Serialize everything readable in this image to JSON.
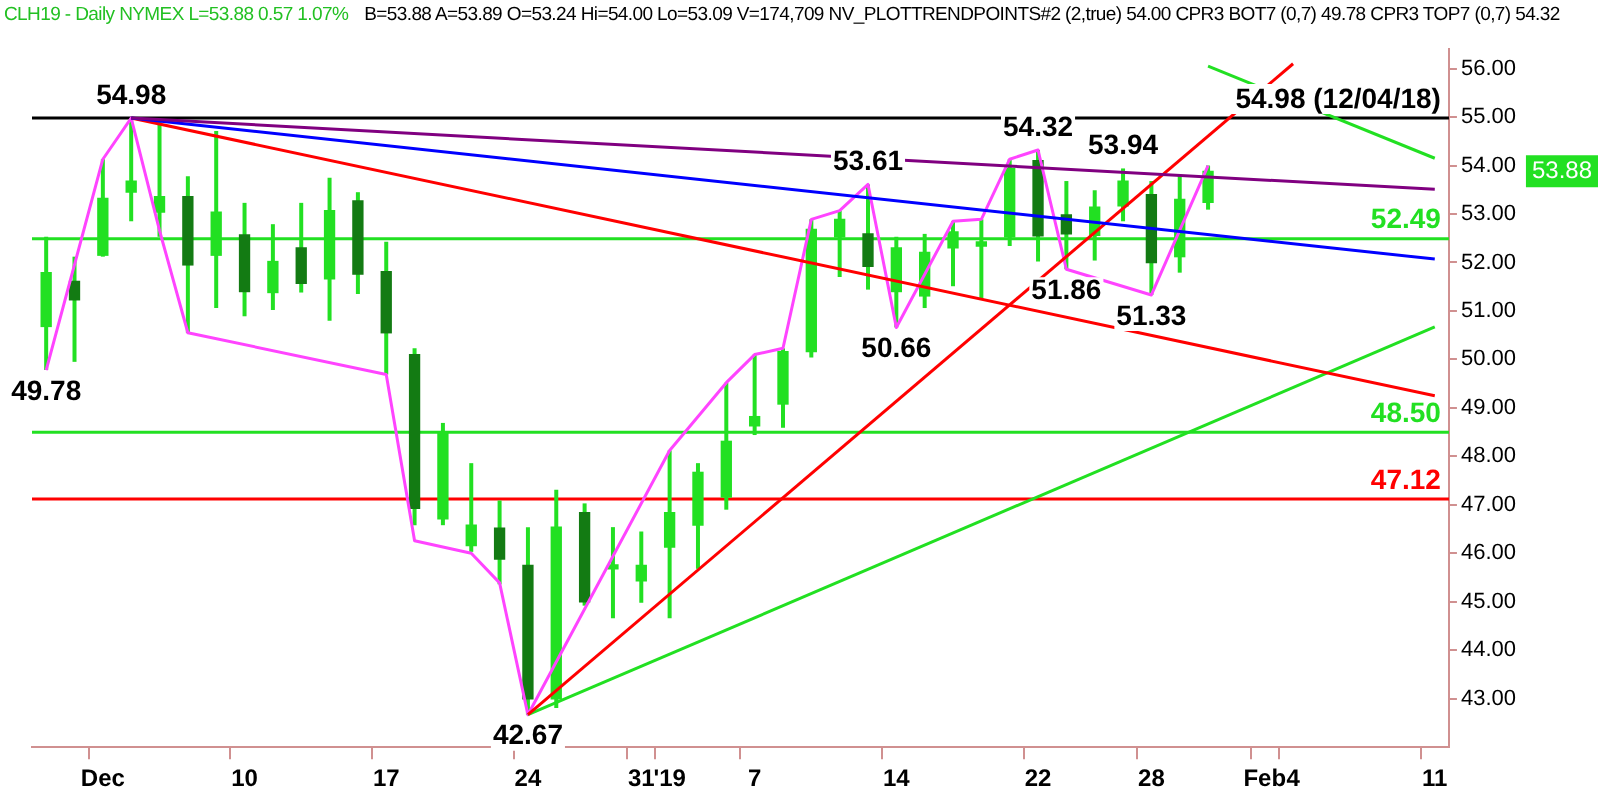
{
  "chart_data": {
    "type": "candlestick",
    "title": "CLH19 - Daily  NYMEX  L=53.88  0.57  1.07%",
    "subtitle": "B=53.88  A=53.89  O=53.24  Hi=54.00  Lo=53.09  V=174,709  NV_PLOTTRENDPOINTS#2 (2,true)  54.00  CPR3 BOT7 (0,7)  49.78  CPR3 TOP7 (0,7)  54.32",
    "categories": [
      null,
      null,
      "Dec",
      null,
      null,
      null,
      null,
      "10",
      null,
      null,
      null,
      null,
      "17",
      null,
      null,
      null,
      null,
      "24",
      null,
      null,
      null,
      "31",
      "'19",
      null,
      null,
      "7",
      null,
      null,
      null,
      null,
      "14",
      null,
      null,
      null,
      null,
      "22",
      null,
      null,
      null,
      "28",
      null,
      null,
      null,
      "Feb",
      "4",
      null,
      null,
      null,
      null,
      "11"
    ],
    "color": "#22e022",
    "colors": [
      "#22e022",
      "#137b13",
      "#22e022",
      "#22e022",
      "#22e022",
      "#137b13",
      "#22e022",
      "#137b13",
      "#22e022",
      "#137b13",
      "#22e022",
      "#137b13",
      "#137b13",
      "#137b13",
      "#22e022",
      "#22e022",
      "#137b13",
      "#137b13",
      "#22e022",
      "#137b13",
      "#22e022",
      "#22e022",
      "#22e022",
      "#22e022",
      "#22e022",
      "#22e022",
      "#22e022",
      "#22e022",
      "#22e022",
      "#137b13",
      "#22e022",
      "#22e022",
      "#22e022",
      "#22e022",
      "#22e022",
      "#137b13",
      "#137b13",
      "#22e022",
      "#22e022",
      "#137b13",
      "#22e022",
      "#22e022",
      null,
      null,
      null,
      null,
      null,
      null,
      null,
      null
    ],
    "ohlc": [
      [
        50.68,
        52.53,
        49.78,
        51.79
      ],
      [
        51.61,
        52.12,
        49.95,
        51.23
      ],
      [
        52.15,
        54.13,
        52.12,
        53.32
      ],
      [
        53.45,
        54.98,
        52.85,
        53.68
      ],
      [
        53.04,
        54.9,
        52.53,
        53.36
      ],
      [
        53.36,
        53.78,
        50.55,
        51.95
      ],
      [
        52.15,
        54.71,
        51.06,
        53.04
      ],
      [
        52.57,
        53.23,
        50.89,
        51.4
      ],
      [
        51.38,
        52.79,
        51.02,
        52.02
      ],
      [
        52.3,
        53.23,
        51.38,
        51.57
      ],
      [
        51.66,
        53.75,
        50.8,
        53.07
      ],
      [
        53.27,
        53.45,
        51.35,
        51.76
      ],
      [
        51.81,
        52.43,
        49.69,
        50.55
      ],
      [
        50.1,
        50.23,
        46.58,
        46.93
      ],
      [
        46.71,
        48.69,
        46.58,
        48.5
      ],
      [
        46.16,
        47.86,
        46.03,
        46.58
      ],
      [
        46.52,
        47.09,
        45.36,
        45.88
      ],
      [
        45.75,
        46.54,
        42.67,
        43.0
      ],
      [
        43.0,
        47.31,
        42.81,
        46.54
      ],
      [
        46.84,
        47.03,
        44.92,
        45.0
      ],
      [
        45.68,
        46.54,
        44.66,
        45.75
      ],
      [
        45.43,
        46.45,
        44.98,
        45.75
      ],
      [
        46.13,
        48.12,
        44.66,
        46.84
      ],
      [
        46.58,
        47.86,
        45.68,
        47.67
      ],
      [
        47.16,
        49.52,
        46.9,
        48.31
      ],
      [
        48.63,
        50.1,
        48.44,
        48.82
      ],
      [
        49.08,
        50.23,
        48.59,
        50.16
      ],
      [
        50.16,
        52.89,
        50.04,
        52.68
      ],
      [
        52.53,
        53.07,
        51.7,
        52.89
      ],
      [
        52.59,
        53.61,
        51.44,
        51.92
      ],
      [
        51.4,
        52.53,
        50.66,
        52.3
      ],
      [
        51.31,
        52.59,
        51.06,
        52.21
      ],
      [
        52.3,
        52.85,
        51.51,
        52.63
      ],
      [
        52.34,
        52.89,
        51.25,
        52.4
      ],
      [
        52.53,
        54.13,
        52.34,
        53.94
      ],
      [
        54.1,
        54.32,
        52.02,
        52.55
      ],
      [
        52.98,
        53.68,
        51.86,
        52.59
      ],
      [
        52.56,
        53.49,
        52.04,
        53.14
      ],
      [
        53.17,
        53.94,
        52.85,
        53.68
      ],
      [
        53.4,
        53.68,
        51.33,
        52.0
      ],
      [
        52.12,
        53.81,
        51.79,
        53.3
      ],
      [
        53.24,
        54.0,
        53.09,
        53.88
      ],
      null,
      null,
      null,
      null,
      null,
      null,
      null,
      null
    ],
    "series": [
      {
        "type": "line",
        "color": "#800080",
        "values": [
          null,
          null,
          null,
          54.98,
          null,
          null,
          null,
          null,
          null,
          null,
          null,
          null,
          null,
          null,
          null,
          null,
          null,
          null,
          null,
          null,
          null,
          null,
          null,
          null,
          null,
          null,
          null,
          null,
          null,
          null,
          null,
          null,
          null,
          null,
          null,
          null,
          null,
          null,
          null,
          null,
          null,
          null,
          null,
          null,
          null,
          null,
          null,
          null,
          null,
          53.51
        ]
      },
      {
        "type": "line",
        "color": "#0000ff",
        "values": [
          null,
          null,
          null,
          54.98,
          null,
          null,
          null,
          null,
          null,
          null,
          null,
          null,
          null,
          null,
          null,
          null,
          null,
          null,
          null,
          null,
          null,
          null,
          null,
          null,
          null,
          null,
          null,
          null,
          null,
          null,
          null,
          null,
          null,
          null,
          null,
          null,
          null,
          null,
          null,
          null,
          null,
          null,
          null,
          null,
          null,
          null,
          null,
          null,
          null,
          52.07
        ]
      },
      {
        "type": "line",
        "color": "#ff0000",
        "values": [
          null,
          null,
          null,
          54.98,
          null,
          null,
          null,
          null,
          null,
          null,
          null,
          null,
          null,
          null,
          null,
          null,
          null,
          null,
          null,
          null,
          null,
          null,
          null,
          null,
          null,
          null,
          null,
          null,
          null,
          null,
          null,
          null,
          null,
          null,
          null,
          null,
          null,
          null,
          null,
          null,
          null,
          null,
          null,
          null,
          null,
          null,
          null,
          null,
          null,
          49.25
        ]
      },
      {
        "type": "line",
        "color": "#ff0000",
        "values": [
          null,
          null,
          null,
          null,
          null,
          null,
          null,
          null,
          null,
          null,
          null,
          null,
          null,
          null,
          null,
          null,
          null,
          42.67,
          null,
          null,
          null,
          null,
          null,
          null,
          null,
          null,
          null,
          null,
          null,
          null,
          null,
          null,
          null,
          null,
          null,
          null,
          null,
          null,
          null,
          null,
          null,
          null,
          null,
          null,
          56.1,
          null,
          null,
          null,
          null,
          null
        ]
      },
      {
        "type": "line",
        "color": "#22e022",
        "values": [
          null,
          null,
          null,
          null,
          null,
          null,
          null,
          null,
          null,
          null,
          null,
          null,
          null,
          null,
          null,
          null,
          null,
          42.67,
          null,
          null,
          null,
          null,
          null,
          null,
          null,
          null,
          null,
          null,
          null,
          null,
          null,
          null,
          null,
          null,
          null,
          null,
          null,
          null,
          null,
          null,
          null,
          null,
          null,
          null,
          null,
          null,
          null,
          null,
          null,
          50.67
        ]
      },
      {
        "type": "line",
        "color": "#22e022",
        "values": [
          null,
          null,
          null,
          null,
          null,
          null,
          null,
          null,
          null,
          null,
          null,
          null,
          null,
          null,
          null,
          null,
          null,
          null,
          null,
          null,
          null,
          null,
          null,
          null,
          null,
          null,
          null,
          null,
          null,
          null,
          null,
          null,
          null,
          null,
          null,
          null,
          null,
          null,
          null,
          null,
          null,
          56.05,
          null,
          null,
          null,
          null,
          null,
          null,
          null,
          54.15
        ]
      },
      {
        "type": "line",
        "color": "#ff44ff",
        "values": [
          49.78,
          null,
          54.13,
          54.98,
          52.66,
          50.55,
          null,
          null,
          null,
          null,
          null,
          null,
          49.69,
          46.26,
          null,
          46.0,
          45.39,
          42.67,
          null,
          null,
          null,
          null,
          48.12,
          null,
          49.52,
          50.1,
          50.23,
          52.89,
          53.07,
          53.61,
          50.66,
          null,
          52.85,
          52.89,
          54.13,
          54.32,
          51.86,
          null,
          null,
          51.33,
          null,
          54.0,
          null,
          null,
          null,
          null,
          null,
          null,
          null,
          null
        ]
      }
    ],
    "ref_lines": [
      {
        "axis": "y",
        "value": 54.98,
        "label": "54.98 (12/04/18)",
        "color": "#000000"
      },
      {
        "axis": "y",
        "value": 52.49,
        "label": "52.49",
        "color": "#22e022"
      },
      {
        "axis": "y",
        "value": 48.5,
        "label": "48.50",
        "color": "#22e022"
      },
      {
        "axis": "y",
        "value": 47.12,
        "label": "47.12",
        "color": "#ff0000"
      }
    ],
    "annotations": [
      {
        "text": "49.78",
        "y": 49.78
      },
      {
        "text": "54.98",
        "y": 54.98
      },
      {
        "text": "42.67",
        "y": 42.67
      },
      {
        "text": "53.61",
        "y": 53.61
      },
      {
        "text": "50.66",
        "y": 50.66
      },
      {
        "text": "54.32",
        "y": 54.32
      },
      {
        "text": "51.86",
        "y": 51.86
      },
      {
        "text": "53.94",
        "y": 53.94
      },
      {
        "text": "51.33",
        "y": 51.33
      },
      "53.88"
    ],
    "ylim": [
      42,
      56.4
    ],
    "yticks": [
      {
        "value": 43,
        "label": "43.00"
      },
      {
        "value": 44,
        "label": "44.00"
      },
      {
        "value": 45,
        "label": "45.00"
      },
      {
        "value": 46,
        "label": "46.00"
      },
      {
        "value": 47,
        "label": "47.00"
      },
      {
        "value": 48,
        "label": "48.00"
      },
      {
        "value": 49,
        "label": "49.00"
      },
      {
        "value": 50,
        "label": "50.00"
      },
      {
        "value": 51,
        "label": "51.00"
      },
      {
        "value": 52,
        "label": "52.00"
      },
      {
        "value": 53,
        "label": "53.00"
      },
      {
        "value": 54,
        "label": "54.00"
      },
      {
        "value": 55,
        "label": "55.00"
      },
      {
        "value": 56,
        "label": "56.00"
      }
    ],
    "grid": false,
    "legend": false,
    "marker": "none"
  }
}
